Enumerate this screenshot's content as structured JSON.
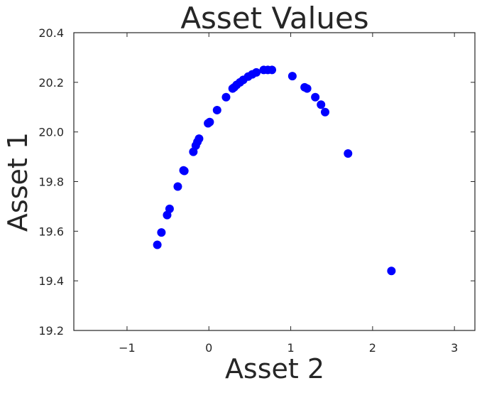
{
  "chart_data": {
    "type": "scatter",
    "title": "Asset Values",
    "xlabel": "Asset 2",
    "ylabel": "Asset 1",
    "xlim": [
      -1.65,
      3.25
    ],
    "ylim": [
      19.2,
      20.4
    ],
    "xticks": [
      -1,
      0,
      1,
      2,
      3
    ],
    "xtick_labels": [
      "−1",
      "0",
      "1",
      "2",
      "3"
    ],
    "yticks": [
      19.2,
      19.4,
      19.6,
      19.8,
      20.0,
      20.2,
      20.4
    ],
    "ytick_labels": [
      "19.2",
      "19.4",
      "19.6",
      "19.8",
      "20.0",
      "20.2",
      "20.4"
    ],
    "grid": false,
    "marker_color": "#0000ff",
    "series": [
      {
        "points": [
          {
            "x": -0.63,
            "y": 19.545
          },
          {
            "x": -0.58,
            "y": 19.595
          },
          {
            "x": -0.51,
            "y": 19.665
          },
          {
            "x": -0.48,
            "y": 19.69
          },
          {
            "x": -0.38,
            "y": 19.78
          },
          {
            "x": -0.31,
            "y": 19.845
          },
          {
            "x": -0.3,
            "y": 19.843
          },
          {
            "x": -0.19,
            "y": 19.92
          },
          {
            "x": -0.16,
            "y": 19.945
          },
          {
            "x": -0.14,
            "y": 19.96
          },
          {
            "x": -0.12,
            "y": 19.973
          },
          {
            "x": -0.01,
            "y": 20.035
          },
          {
            "x": 0.01,
            "y": 20.04
          },
          {
            "x": 0.1,
            "y": 20.088
          },
          {
            "x": 0.21,
            "y": 20.14
          },
          {
            "x": 0.29,
            "y": 20.175
          },
          {
            "x": 0.31,
            "y": 20.18
          },
          {
            "x": 0.34,
            "y": 20.19
          },
          {
            "x": 0.38,
            "y": 20.2
          },
          {
            "x": 0.42,
            "y": 20.21
          },
          {
            "x": 0.48,
            "y": 20.223
          },
          {
            "x": 0.53,
            "y": 20.232
          },
          {
            "x": 0.58,
            "y": 20.24
          },
          {
            "x": 0.67,
            "y": 20.25
          },
          {
            "x": 0.72,
            "y": 20.25
          },
          {
            "x": 0.77,
            "y": 20.25
          },
          {
            "x": 1.02,
            "y": 20.225
          },
          {
            "x": 1.17,
            "y": 20.18
          },
          {
            "x": 1.2,
            "y": 20.175
          },
          {
            "x": 1.3,
            "y": 20.14
          },
          {
            "x": 1.37,
            "y": 20.11
          },
          {
            "x": 1.42,
            "y": 20.08
          },
          {
            "x": 1.7,
            "y": 19.913
          },
          {
            "x": 2.23,
            "y": 19.44
          }
        ]
      }
    ]
  }
}
